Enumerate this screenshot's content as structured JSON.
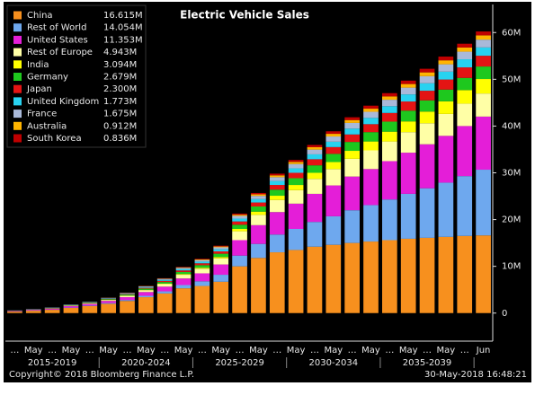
{
  "chart_data": {
    "type": "stacked-bar",
    "title": "Electric Vehicle Sales",
    "categories": [
      "…",
      "May",
      "…",
      "May",
      "…",
      "May",
      "…",
      "May",
      "…",
      "May",
      "…",
      "May",
      "…",
      "May",
      "…",
      "May",
      "…",
      "May",
      "…",
      "May",
      "…",
      "May",
      "…",
      "May",
      "…",
      "Jun"
    ],
    "periods": [
      "2015-2019",
      "2020-2024",
      "2025-2029",
      "2030-2034",
      "2035-2039"
    ],
    "ylim": [
      -6,
      66
    ],
    "yticks": [
      0,
      {
        "value": 10,
        "label": "10M"
      },
      {
        "value": 20,
        "label": "20M"
      },
      {
        "value": 30,
        "label": "30M"
      },
      {
        "value": 40,
        "label": "40M"
      },
      {
        "value": 50,
        "label": "50M"
      },
      {
        "value": 60,
        "label": "60M"
      }
    ],
    "series": [
      {
        "name": "China",
        "color": "#f7901e",
        "legend_label": "16.615M",
        "values": [
          0.3,
          0.5,
          0.7,
          1.1,
          1.5,
          2.0,
          2.6,
          3.4,
          4.2,
          5.3,
          5.8,
          6.7,
          10.0,
          11.8,
          13.0,
          13.5,
          14.2,
          14.6,
          15.0,
          15.3,
          15.6,
          15.9,
          16.1,
          16.3,
          16.5,
          16.615
        ]
      },
      {
        "name": "Rest of World",
        "color": "#6ea8ee",
        "legend_label": "14.054M",
        "values": [
          0.02,
          0.03,
          0.05,
          0.08,
          0.1,
          0.15,
          0.2,
          0.3,
          0.45,
          0.7,
          1.0,
          1.5,
          2.3,
          3.0,
          3.8,
          4.5,
          5.3,
          6.1,
          7.0,
          7.8,
          8.7,
          9.6,
          10.6,
          11.6,
          12.8,
          14.054
        ]
      },
      {
        "name": "United States",
        "color": "#e41ed8",
        "legend_label": "11.353M",
        "values": [
          0.1,
          0.15,
          0.2,
          0.3,
          0.35,
          0.45,
          0.6,
          0.8,
          1.0,
          1.4,
          1.7,
          2.2,
          3.3,
          4.0,
          4.8,
          5.4,
          6.0,
          6.6,
          7.2,
          7.7,
          8.2,
          8.8,
          9.4,
          10.0,
          10.7,
          11.353
        ]
      },
      {
        "name": "Rest of Europe",
        "color": "#ffffa6",
        "legend_label": "4.943M",
        "values": [
          0.05,
          0.05,
          0.07,
          0.1,
          0.15,
          0.2,
          0.3,
          0.4,
          0.55,
          0.8,
          1.0,
          1.3,
          1.9,
          2.2,
          2.6,
          2.9,
          3.2,
          3.5,
          3.8,
          4.0,
          4.2,
          4.4,
          4.5,
          4.7,
          4.8,
          4.943
        ]
      },
      {
        "name": "India",
        "color": "#ffff00",
        "legend_label": "3.094M",
        "values": [
          0,
          0,
          0.01,
          0.01,
          0.02,
          0.03,
          0.05,
          0.08,
          0.1,
          0.15,
          0.2,
          0.3,
          0.5,
          0.7,
          0.9,
          1.1,
          1.3,
          1.5,
          1.7,
          1.9,
          2.1,
          2.3,
          2.5,
          2.7,
          2.9,
          3.094
        ]
      },
      {
        "name": "Germany",
        "color": "#1ec81e",
        "legend_label": "2.679M",
        "values": [
          0.02,
          0.03,
          0.05,
          0.07,
          0.1,
          0.15,
          0.2,
          0.25,
          0.35,
          0.45,
          0.55,
          0.7,
          0.9,
          1.1,
          1.3,
          1.45,
          1.6,
          1.75,
          1.9,
          2.0,
          2.15,
          2.3,
          2.4,
          2.5,
          2.6,
          2.679
        ]
      },
      {
        "name": "Japan",
        "color": "#e41414",
        "legend_label": "2.300M",
        "values": [
          0.03,
          0.03,
          0.04,
          0.05,
          0.07,
          0.1,
          0.13,
          0.18,
          0.25,
          0.32,
          0.4,
          0.5,
          0.7,
          0.85,
          1.0,
          1.15,
          1.3,
          1.45,
          1.6,
          1.7,
          1.85,
          1.95,
          2.05,
          2.15,
          2.25,
          2.3
        ]
      },
      {
        "name": "United Kingdom",
        "color": "#28d2f0",
        "legend_label": "1.773M",
        "values": [
          0.03,
          0.04,
          0.05,
          0.06,
          0.08,
          0.1,
          0.13,
          0.17,
          0.22,
          0.3,
          0.36,
          0.45,
          0.6,
          0.72,
          0.85,
          0.95,
          1.05,
          1.15,
          1.25,
          1.35,
          1.45,
          1.52,
          1.6,
          1.68,
          1.73,
          1.773
        ]
      },
      {
        "name": "France",
        "color": "#a9b9d9",
        "legend_label": "1.675M",
        "values": [
          0.02,
          0.03,
          0.03,
          0.04,
          0.06,
          0.08,
          0.1,
          0.14,
          0.2,
          0.26,
          0.33,
          0.42,
          0.58,
          0.7,
          0.82,
          0.93,
          1.02,
          1.12,
          1.22,
          1.3,
          1.38,
          1.45,
          1.52,
          1.58,
          1.63,
          1.675
        ]
      },
      {
        "name": "Australia",
        "color": "#ffb400",
        "legend_label": "0.912M",
        "values": [
          0,
          0,
          0,
          0.01,
          0.01,
          0.02,
          0.03,
          0.05,
          0.07,
          0.1,
          0.13,
          0.17,
          0.25,
          0.32,
          0.39,
          0.45,
          0.51,
          0.57,
          0.62,
          0.67,
          0.72,
          0.77,
          0.81,
          0.85,
          0.88,
          0.912
        ]
      },
      {
        "name": "South Korea",
        "color": "#c00000",
        "legend_label": "0.836M",
        "values": [
          0,
          0,
          0.01,
          0.01,
          0.01,
          0.02,
          0.03,
          0.05,
          0.07,
          0.1,
          0.13,
          0.17,
          0.25,
          0.3,
          0.36,
          0.42,
          0.48,
          0.54,
          0.59,
          0.64,
          0.69,
          0.73,
          0.77,
          0.8,
          0.82,
          0.836
        ]
      }
    ],
    "footer_left": "Copyright© 2018 Bloomberg Finance L.P.",
    "footer_right": "30-May-2018 16:48:21"
  }
}
